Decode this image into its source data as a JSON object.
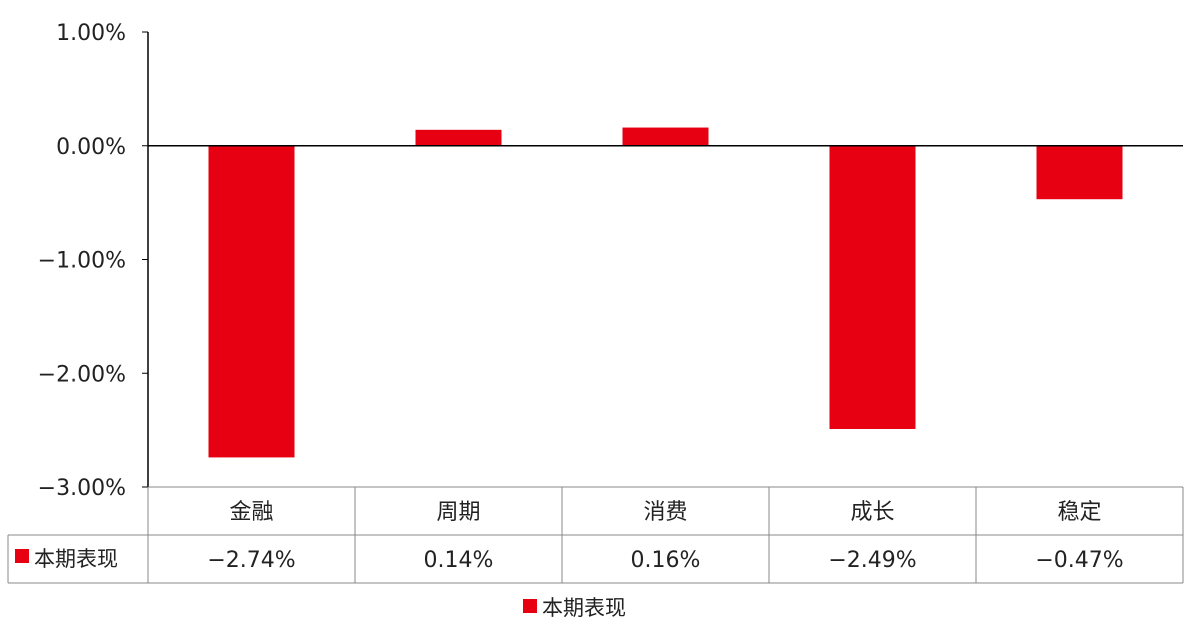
{
  "chart_data": {
    "type": "bar",
    "title": "",
    "xlabel": "",
    "ylabel": "",
    "categories": [
      "金融",
      "周期",
      "消费",
      "成长",
      "稳定"
    ],
    "series": [
      {
        "name": "本期表现",
        "values": [
          -2.74,
          0.14,
          0.16,
          -2.49,
          -0.47
        ],
        "labels": [
          "−2.74%",
          "0.14%",
          "0.16%",
          "−2.49%",
          "−0.47%"
        ],
        "color": "#e60012"
      }
    ],
    "ylim": [
      -3,
      1
    ],
    "yticks": [
      1,
      0,
      -1,
      -2,
      -3
    ],
    "ytick_labels": [
      "1.00%",
      "0.00%",
      "−1.00%",
      "−2.00%",
      "−3.00%"
    ],
    "grid": false,
    "data_table": true,
    "legend": {
      "placement": "bottom",
      "entries": [
        "本期表现"
      ]
    }
  }
}
